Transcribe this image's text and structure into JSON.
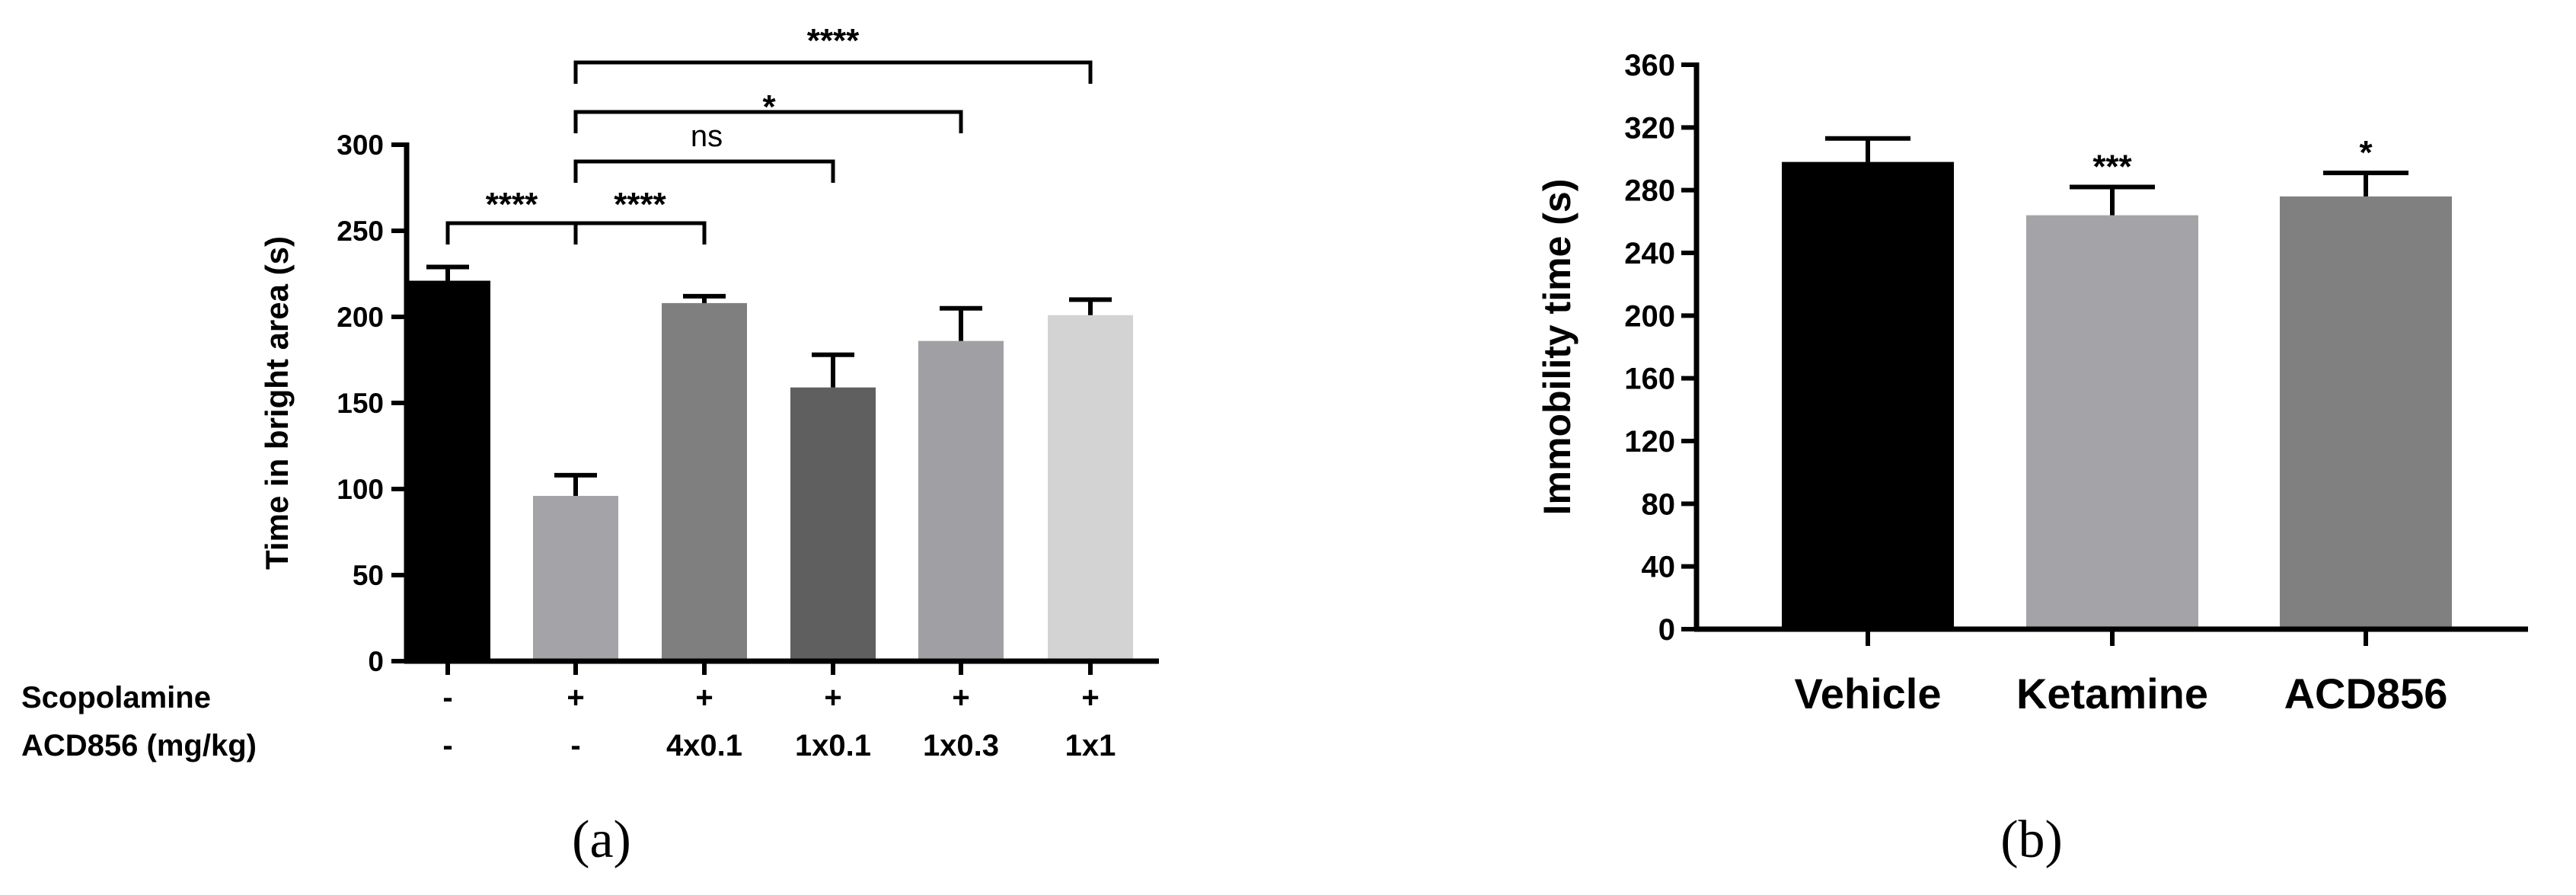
{
  "chart_data": [
    {
      "panel_label": "(a)",
      "type": "bar",
      "ylabel": "Time in  bright area (s)",
      "ylim": [
        0,
        300
      ],
      "yticks": [
        0,
        50,
        100,
        150,
        200,
        250,
        300
      ],
      "grid": false,
      "rows": [
        {
          "label": "Scopolamine",
          "values": [
            "-",
            "+",
            "+",
            "+",
            "+",
            "+"
          ]
        },
        {
          "label": "ACD856 (mg/kg)",
          "values": [
            "-",
            "-",
            "4x0.1",
            "1x0.1",
            "1x0.3",
            "1x1"
          ]
        }
      ],
      "values": [
        221,
        96,
        208,
        159,
        186,
        201
      ],
      "errors": [
        8,
        12,
        4,
        19,
        19,
        9
      ],
      "colors": [
        "#000000",
        "#a3a3a8",
        "#7f7f7f",
        "#5f5f5f",
        "#a0a0a4",
        "#d3d3d3"
      ],
      "annotations": [
        {
          "from": 0,
          "to": 1,
          "text": "****"
        },
        {
          "from": 1,
          "to": 2,
          "text": "****"
        },
        {
          "from": 1,
          "to": 3,
          "text": "ns"
        },
        {
          "from": 1,
          "to": 4,
          "text": "*"
        },
        {
          "from": 1,
          "to": 5,
          "text": "****"
        }
      ]
    },
    {
      "panel_label": "(b)",
      "type": "bar",
      "ylabel": "Immobility time (s)",
      "categories": [
        "Vehicle",
        "Ketamine",
        "ACD856"
      ],
      "ylim": [
        0,
        360
      ],
      "yticks": [
        0,
        40,
        80,
        120,
        160,
        200,
        240,
        280,
        320,
        360
      ],
      "grid": false,
      "values": [
        298,
        264,
        276
      ],
      "errors": [
        15,
        18,
        15
      ],
      "colors": [
        "#000000",
        "#a3a3a8",
        "#808080"
      ],
      "annotations": [
        "",
        "***",
        "*"
      ]
    }
  ]
}
